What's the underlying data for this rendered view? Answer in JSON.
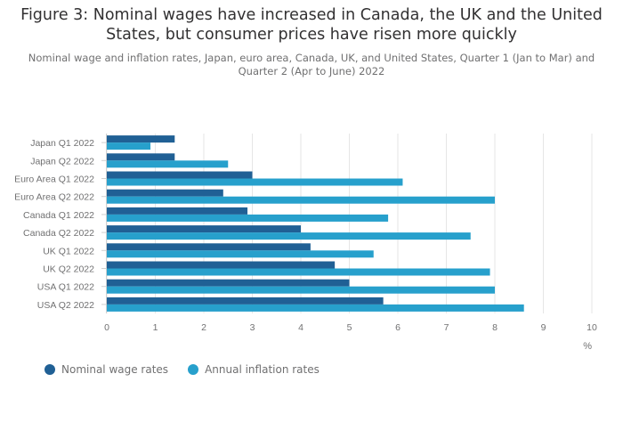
{
  "chart_data": {
    "type": "bar",
    "orientation": "horizontal",
    "title": "Figure 3: Nominal wages have increased in Canada, the UK and the United States, but consumer prices have risen more quickly",
    "subtitle": "Nominal wage and inflation rates, Japan, euro area, Canada, UK, and United States, Quarter 1 (Jan to Mar) and Quarter 2 (Apr to June) 2022",
    "categories": [
      "Japan Q1 2022",
      "Japan Q2 2022",
      "Euro Area Q1 2022",
      "Euro Area Q2 2022",
      "Canada Q1 2022",
      "Canada Q2 2022",
      "UK Q1 2022",
      "UK Q2 2022",
      "USA Q1 2022",
      "USA Q2 2022"
    ],
    "series": [
      {
        "name": "Nominal wage rates",
        "color": "#206095",
        "values": [
          1.4,
          1.4,
          3.0,
          2.4,
          2.9,
          4.0,
          4.2,
          4.7,
          5.0,
          5.7
        ]
      },
      {
        "name": "Annual inflation rates",
        "color": "#27a0cc",
        "values": [
          0.9,
          2.5,
          6.1,
          8.0,
          5.8,
          7.5,
          5.5,
          7.9,
          8.0,
          8.6
        ]
      }
    ],
    "xlim": [
      0,
      10
    ],
    "xticks": [
      "0",
      "1",
      "2",
      "3",
      "4",
      "5",
      "6",
      "7",
      "8",
      "9",
      "10"
    ],
    "xlabel": "%",
    "grid": true,
    "legend_position": "bottom-left"
  }
}
